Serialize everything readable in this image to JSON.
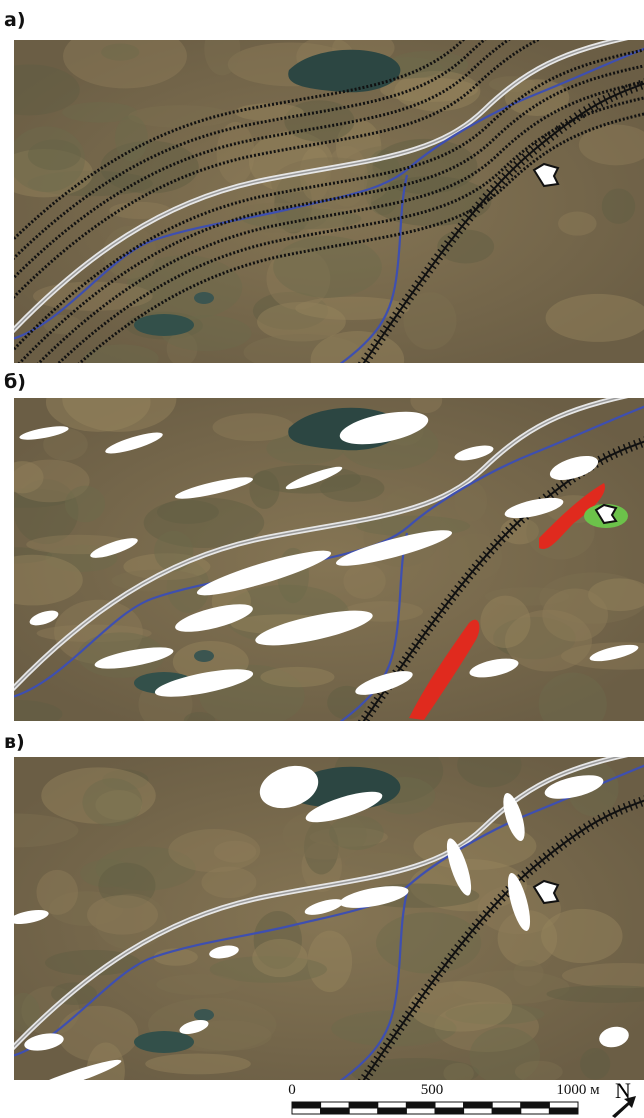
{
  "panels": [
    {
      "label": "а)"
    },
    {
      "label": "б)"
    },
    {
      "label": "в)"
    }
  ],
  "scale_bar": {
    "labels": [
      "0",
      "500",
      "1000 м"
    ]
  },
  "north": "N"
}
